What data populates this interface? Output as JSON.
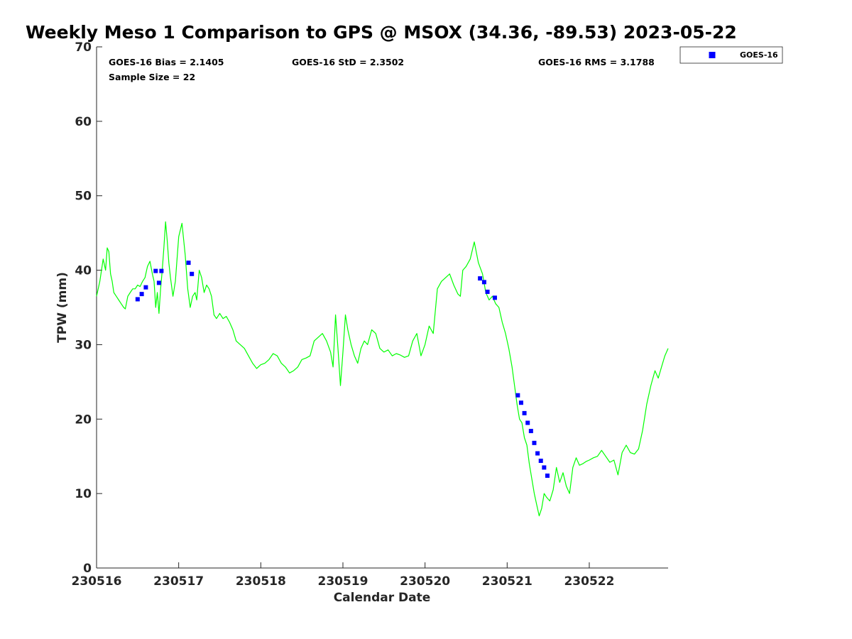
{
  "chart_data": {
    "type": "line",
    "title": "Weekly Meso 1 Comparison to GPS @ MSOX (34.36, -89.53) 2023-05-22",
    "xlabel": "Calendar Date",
    "ylabel": "TPW (mm)",
    "xlim": [
      230516,
      230522.96
    ],
    "ylim": [
      0,
      70
    ],
    "xticks": [
      {
        "value": 230516,
        "label": "230516"
      },
      {
        "value": 230517,
        "label": "230517"
      },
      {
        "value": 230518,
        "label": "230518"
      },
      {
        "value": 230519,
        "label": "230519"
      },
      {
        "value": 230520,
        "label": "230520"
      },
      {
        "value": 230521,
        "label": "230521"
      },
      {
        "value": 230522,
        "label": "230522"
      }
    ],
    "yticks": [
      0,
      10,
      20,
      30,
      40,
      50,
      60,
      70
    ],
    "grid": false,
    "stats": {
      "bias": "GOES-16 Bias = 2.1405",
      "std": "GOES-16 StD = 2.3502",
      "rms": "GOES-16 RMS = 3.1788",
      "sample": "Sample Size = 22"
    },
    "legend": {
      "position": "outside-top-right",
      "entries": [
        {
          "name": "GOES-16",
          "color": "#0000ff",
          "marker": "square"
        }
      ]
    },
    "series": [
      {
        "name": "",
        "color": "#00ff00",
        "style": "line",
        "x": [
          230516.0,
          230516.04,
          230516.08,
          230516.11,
          230516.13,
          230516.15,
          230516.17,
          230516.19,
          230516.21,
          230516.24,
          230516.27,
          230516.3,
          230516.33,
          230516.35,
          230516.38,
          230516.41,
          230516.44,
          230516.47,
          230516.5,
          230516.53,
          230516.56,
          230516.59,
          230516.62,
          230516.65,
          230516.68,
          230516.7,
          230516.72,
          230516.74,
          230516.76,
          230516.78,
          230516.8,
          230516.82,
          230516.84,
          230516.86,
          230516.88,
          230516.9,
          230516.93,
          230516.96,
          230517.0,
          230517.04,
          230517.08,
          230517.11,
          230517.14,
          230517.17,
          230517.2,
          230517.22,
          230517.25,
          230517.28,
          230517.31,
          230517.34,
          230517.37,
          230517.4,
          230517.43,
          230517.46,
          230517.5,
          230517.54,
          230517.58,
          230517.62,
          230517.66,
          230517.7,
          230517.75,
          230517.8,
          230517.85,
          230517.9,
          230517.95,
          230518.0,
          230518.05,
          230518.1,
          230518.15,
          230518.2,
          230518.25,
          230518.3,
          230518.35,
          230518.4,
          230518.45,
          230518.5,
          230518.55,
          230518.6,
          230518.65,
          230518.7,
          230518.75,
          230518.8,
          230518.85,
          230518.88,
          230518.91,
          230518.94,
          230518.97,
          230519.0,
          230519.03,
          230519.06,
          230519.1,
          230519.14,
          230519.18,
          230519.22,
          230519.26,
          230519.3,
          230519.35,
          230519.4,
          230519.45,
          230519.5,
          230519.55,
          230519.6,
          230519.65,
          230519.7,
          230519.75,
          230519.8,
          230519.85,
          230519.9,
          230519.95,
          230520.0,
          230520.05,
          230520.1,
          230520.15,
          230520.2,
          230520.25,
          230520.3,
          230520.35,
          230520.4,
          230520.43,
          230520.46,
          230520.5,
          230520.55,
          230520.6,
          230520.65,
          230520.7,
          230520.74,
          230520.78,
          230520.82,
          230520.86,
          230520.9,
          230520.94,
          230520.98,
          230521.02,
          230521.06,
          230521.09,
          230521.12,
          230521.15,
          230521.18,
          230521.21,
          230521.24,
          230521.27,
          230521.3,
          230521.33,
          230521.36,
          230521.39,
          230521.42,
          230521.45,
          230521.48,
          230521.52,
          230521.56,
          230521.6,
          230521.64,
          230521.68,
          230521.72,
          230521.76,
          230521.8,
          230521.84,
          230521.88,
          230521.92,
          230521.96,
          230522.0,
          230522.05,
          230522.1,
          230522.15,
          230522.2,
          230522.25,
          230522.3,
          230522.35,
          230522.4,
          230522.45,
          230522.5,
          230522.55,
          230522.6,
          230522.65,
          230522.7,
          230522.75,
          230522.8,
          230522.84,
          230522.88,
          230522.92,
          230522.96
        ],
        "y": [
          36.5,
          38.5,
          41.5,
          40.0,
          43.0,
          42.5,
          39.5,
          38.5,
          37.0,
          36.5,
          36.0,
          35.5,
          35.0,
          34.8,
          36.5,
          37.0,
          37.5,
          37.5,
          38.0,
          37.8,
          38.5,
          39.0,
          40.5,
          41.2,
          39.5,
          38.5,
          35.0,
          37.0,
          34.2,
          37.5,
          40.0,
          43.0,
          46.5,
          44.0,
          41.0,
          39.0,
          36.5,
          38.5,
          44.5,
          46.3,
          42.0,
          37.5,
          35.0,
          36.5,
          37.0,
          36.0,
          40.0,
          39.0,
          37.0,
          38.0,
          37.5,
          36.5,
          34.0,
          33.5,
          34.2,
          33.5,
          33.8,
          33.0,
          32.0,
          30.5,
          30.0,
          29.5,
          28.5,
          27.5,
          26.8,
          27.3,
          27.5,
          28.0,
          28.8,
          28.5,
          27.5,
          27.0,
          26.2,
          26.5,
          27.0,
          28.0,
          28.2,
          28.5,
          30.5,
          31.0,
          31.5,
          30.5,
          29.0,
          27.0,
          34.0,
          29.5,
          24.5,
          29.0,
          34.0,
          32.0,
          30.0,
          28.5,
          27.5,
          29.5,
          30.5,
          30.0,
          32.0,
          31.5,
          29.5,
          29.0,
          29.3,
          28.5,
          28.8,
          28.6,
          28.3,
          28.5,
          30.5,
          31.5,
          28.5,
          30.0,
          32.5,
          31.5,
          37.5,
          38.5,
          39.0,
          39.5,
          38.0,
          36.8,
          36.5,
          40.0,
          40.5,
          41.5,
          43.8,
          41.0,
          39.5,
          37.0,
          36.0,
          36.5,
          35.5,
          35.0,
          33.0,
          31.5,
          29.5,
          27.0,
          24.5,
          22.0,
          20.0,
          19.5,
          17.5,
          16.5,
          14.0,
          12.0,
          10.0,
          8.5,
          7.0,
          8.0,
          10.0,
          9.5,
          9.0,
          10.5,
          13.5,
          11.5,
          12.8,
          11.0,
          10.0,
          13.5,
          14.8,
          13.8,
          14.0,
          14.3,
          14.5,
          14.8,
          15.0,
          15.8,
          15.0,
          14.2,
          14.5,
          12.5,
          15.5,
          16.5,
          15.5,
          15.3,
          16.0,
          18.5,
          22.0,
          24.5,
          26.5,
          25.5,
          27.0,
          28.5,
          29.5
        ]
      },
      {
        "name": "GOES-16",
        "color": "#0000ff",
        "style": "marker",
        "x": [
          230516.5,
          230516.55,
          230516.6,
          230516.72,
          230516.76,
          230516.79,
          230517.12,
          230517.16,
          230520.67,
          230520.72,
          230520.76,
          230520.85,
          230521.13,
          230521.17,
          230521.21,
          230521.25,
          230521.29,
          230521.33,
          230521.37,
          230521.41,
          230521.45,
          230521.49
        ],
        "y": [
          36.1,
          36.8,
          37.7,
          39.9,
          38.3,
          39.9,
          41.0,
          39.5,
          38.9,
          38.4,
          37.1,
          36.3,
          23.2,
          22.2,
          20.8,
          19.5,
          18.4,
          16.8,
          15.4,
          14.4,
          13.5,
          12.4
        ]
      }
    ]
  }
}
